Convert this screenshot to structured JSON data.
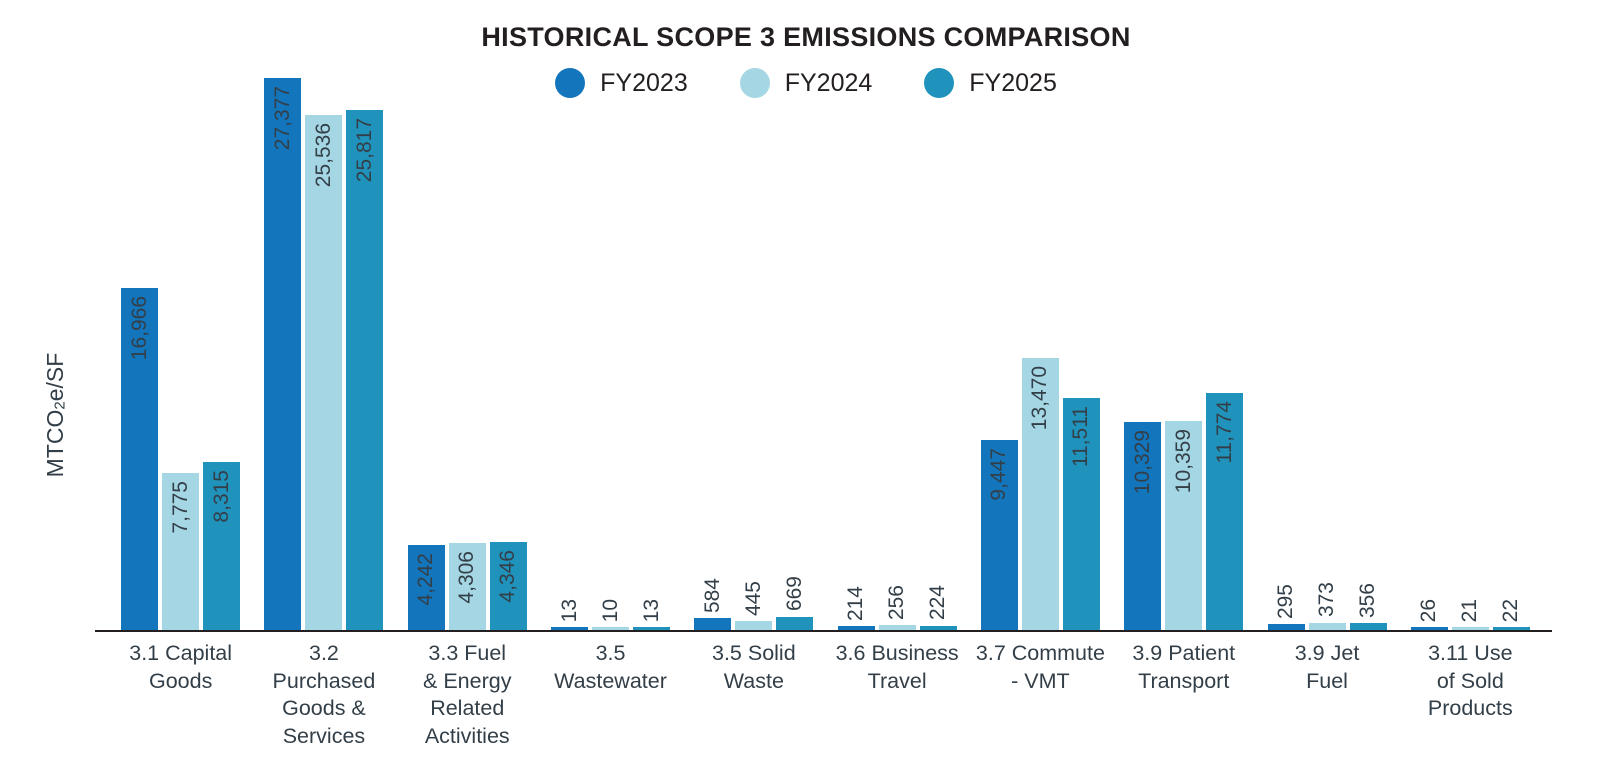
{
  "chart": {
    "title": "HISTORICAL SCOPE 3 EMISSIONS COMPARISON",
    "y_axis_label": {
      "pre": "MTCO",
      "sub": "2",
      "post": "e/SF"
    }
  },
  "chart_data": {
    "type": "bar",
    "title": "HISTORICAL SCOPE 3 EMISSIONS COMPARISON",
    "xlabel": "",
    "ylabel": "MTCO2e/SF",
    "ylim": [
      0,
      27377
    ],
    "grid": false,
    "legend_position": "top",
    "value_labels": "rotated-90-at-bar-top",
    "categories": [
      "3.1 Capital Goods",
      "3.2 Purchased Goods & Services",
      "3.3 Fuel & Energy Related Activities",
      "3.5 Wastewater",
      "3.5 Solid Waste",
      "3.6 Business Travel",
      "3.7 Commute - VMT",
      "3.9 Patient Transport",
      "3.9 Jet Fuel",
      "3.11 Use of Sold Products"
    ],
    "category_label_lines": [
      [
        "3.1 Capital",
        "Goods"
      ],
      [
        "3.2",
        "Purchased",
        "Goods &",
        "Services"
      ],
      [
        "3.3 Fuel",
        "& Energy",
        "Related",
        "Activities"
      ],
      [
        "3.5",
        "Wastewater"
      ],
      [
        "3.5 Solid",
        "Waste"
      ],
      [
        "3.6 Business",
        "Travel"
      ],
      [
        "3.7 Commute",
        "- VMT"
      ],
      [
        "3.9 Patient",
        "Transport"
      ],
      [
        "3.9 Jet",
        "Fuel"
      ],
      [
        "3.11 Use",
        "of Sold",
        "Products"
      ]
    ],
    "series": [
      {
        "name": "FY2023",
        "color": "#1375BC",
        "values": [
          16966,
          27377,
          4242,
          13,
          584,
          214,
          9447,
          10329,
          295,
          26
        ]
      },
      {
        "name": "FY2024",
        "color": "#A5D6E4",
        "values": [
          7775,
          25536,
          4306,
          10,
          445,
          256,
          13470,
          10359,
          373,
          21
        ]
      },
      {
        "name": "FY2025",
        "color": "#2093BC",
        "values": [
          8315,
          25817,
          4346,
          13,
          669,
          224,
          11511,
          11774,
          356,
          22
        ]
      }
    ]
  },
  "colors": {
    "fy2023": "#1375BC",
    "fy2024": "#A5D6E4",
    "fy2025": "#2093BC",
    "axis_line": "#231F20",
    "title_text": "#231F20",
    "label_text": "#333F48",
    "background": "#FFFFFF"
  }
}
